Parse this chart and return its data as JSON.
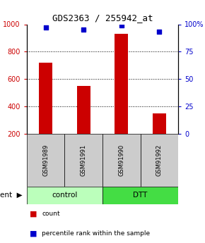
{
  "title": "GDS2363 / 255942_at",
  "samples": [
    "GSM91989",
    "GSM91991",
    "GSM91990",
    "GSM91992"
  ],
  "bar_values": [
    720,
    550,
    930,
    350
  ],
  "percentile_values": [
    97,
    95,
    99,
    93
  ],
  "bar_color": "#cc0000",
  "dot_color": "#0000cc",
  "ylim_left": [
    200,
    1000
  ],
  "ylim_right": [
    0,
    100
  ],
  "yticks_left": [
    200,
    400,
    600,
    800,
    1000
  ],
  "yticks_right": [
    0,
    25,
    50,
    75,
    100
  ],
  "yticklabels_right": [
    "0",
    "25",
    "50",
    "75",
    "100%"
  ],
  "groups": [
    {
      "label": "control",
      "indices": [
        0,
        1
      ],
      "color": "#bbffbb"
    },
    {
      "label": "DTT",
      "indices": [
        2,
        3
      ],
      "color": "#44dd44"
    }
  ],
  "agent_label": "agent",
  "legend_count_label": "count",
  "legend_pct_label": "percentile rank within the sample",
  "sample_box_color": "#cccccc",
  "background_color": "#ffffff",
  "grid_dotted_at": [
    400,
    600,
    800
  ],
  "bar_width": 0.35
}
